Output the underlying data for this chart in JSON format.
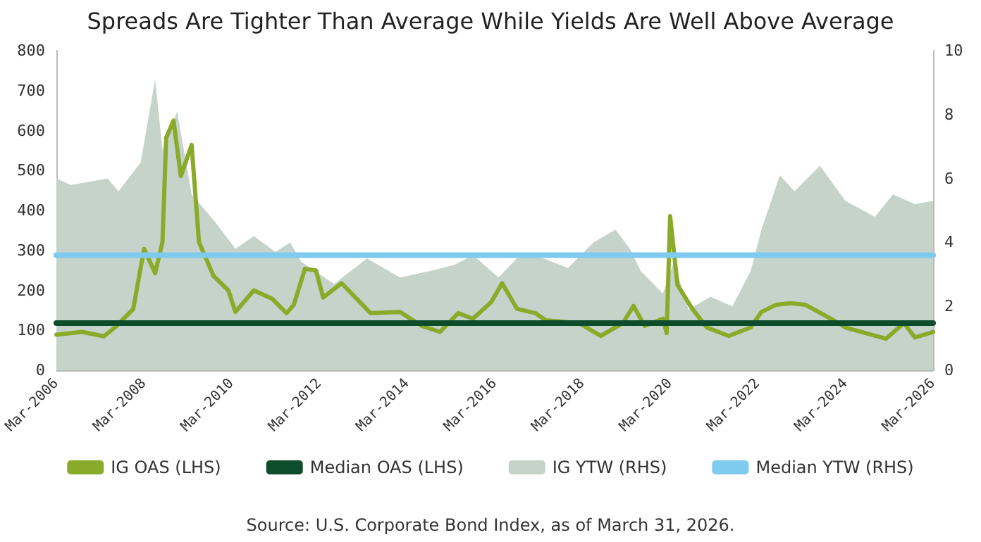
{
  "chart_data": {
    "type": "line",
    "title": "Spreads Are Tighter Than Average While Yields Are Well Above Average",
    "xlim": [
      "2006-03",
      "2026-03"
    ],
    "xticks": [
      {
        "value": "2006-03",
        "label": "Mar-2006"
      },
      {
        "value": "2008-03",
        "label": "Mar-2008"
      },
      {
        "value": "2010-03",
        "label": "Mar-2010"
      },
      {
        "value": "2012-03",
        "label": "Mar-2012"
      },
      {
        "value": "2014-03",
        "label": "Mar-2014"
      },
      {
        "value": "2016-03",
        "label": "Mar-2016"
      },
      {
        "value": "2018-03",
        "label": "Mar-2018"
      },
      {
        "value": "2020-03",
        "label": "Mar-2020"
      },
      {
        "value": "2022-03",
        "label": "Mar-2022"
      },
      {
        "value": "2024-03",
        "label": "Mar-2024"
      },
      {
        "value": "2026-03",
        "label": "Mar-2026"
      }
    ],
    "ylim": [
      0,
      800
    ],
    "yticks": [
      0,
      100,
      200,
      300,
      400,
      500,
      600,
      700,
      800
    ],
    "y2lim": [
      0,
      10
    ],
    "y2ticks": [
      0,
      2,
      4,
      6,
      8,
      10
    ],
    "series": [
      {
        "name": "IG YTW (RHS)",
        "type": "area",
        "axis": "y2",
        "color": "#c5d3cb",
        "x": [
          "2006-03",
          "2006-07",
          "2007-05",
          "2007-08",
          "2008-02",
          "2008-06",
          "2008-08",
          "2008-12",
          "2009-04",
          "2009-10",
          "2010-04",
          "2010-09",
          "2011-03",
          "2011-07",
          "2011-10",
          "2012-07",
          "2013-04",
          "2014-01",
          "2014-09",
          "2015-04",
          "2015-09",
          "2016-04",
          "2016-09",
          "2017-02",
          "2017-11",
          "2018-06",
          "2018-12",
          "2019-04",
          "2019-07",
          "2020-01",
          "2020-04",
          "2020-08",
          "2021-02",
          "2021-08",
          "2022-01",
          "2022-04",
          "2022-09",
          "2023-01",
          "2023-08",
          "2024-03",
          "2024-11",
          "2025-04",
          "2025-10",
          "2026-03"
        ],
        "values": [
          6.0,
          5.8,
          6.0,
          5.6,
          6.5,
          9.1,
          6.9,
          8.1,
          5.5,
          4.7,
          3.8,
          4.2,
          3.7,
          4.0,
          3.4,
          2.7,
          3.5,
          2.9,
          3.1,
          3.3,
          3.6,
          2.9,
          3.5,
          3.6,
          3.2,
          4.0,
          4.4,
          3.8,
          3.1,
          2.4,
          3.4,
          1.9,
          2.3,
          2.0,
          3.1,
          4.4,
          6.1,
          5.6,
          6.4,
          5.3,
          4.8,
          5.5,
          5.2,
          5.3
        ]
      },
      {
        "name": "IG OAS (LHS)",
        "type": "line",
        "color": "#8aaa2a",
        "x": [
          "2006-03",
          "2006-10",
          "2007-04",
          "2007-07",
          "2007-12",
          "2008-03",
          "2008-06",
          "2008-08",
          "2008-09",
          "2008-11",
          "2009-01",
          "2009-04",
          "2009-06",
          "2009-10",
          "2010-02",
          "2010-04",
          "2010-09",
          "2011-02",
          "2011-06",
          "2011-08",
          "2011-11",
          "2012-02",
          "2012-04",
          "2012-09",
          "2013-05",
          "2014-01",
          "2014-07",
          "2014-12",
          "2015-05",
          "2015-09",
          "2016-02",
          "2016-05",
          "2016-09",
          "2017-02",
          "2017-05",
          "2018-02",
          "2018-08",
          "2019-02",
          "2019-05",
          "2019-08",
          "2020-01",
          "2020-02",
          "2020-03",
          "2020-05",
          "2020-09",
          "2021-01",
          "2021-07",
          "2022-01",
          "2022-04",
          "2022-08",
          "2022-12",
          "2023-04",
          "2023-11",
          "2024-03",
          "2025-02",
          "2025-07",
          "2025-10",
          "2026-03"
        ],
        "values": [
          89,
          96,
          85,
          107,
          153,
          304,
          243,
          321,
          582,
          625,
          486,
          564,
          321,
          236,
          200,
          146,
          200,
          179,
          143,
          164,
          254,
          250,
          182,
          218,
          143,
          146,
          111,
          96,
          143,
          129,
          171,
          218,
          154,
          143,
          125,
          118,
          86,
          118,
          161,
          111,
          129,
          93,
          386,
          214,
          154,
          107,
          86,
          107,
          146,
          164,
          168,
          164,
          129,
          107,
          79,
          118,
          82,
          96
        ]
      },
      {
        "name": "Median OAS (LHS)",
        "color": "#0e4d2c",
        "x": [
          "2006-03",
          "2026-03"
        ],
        "values": [
          118,
          118
        ]
      },
      {
        "name": "Median YTW (RHS)",
        "axis": "y2",
        "color": "#7fcbef",
        "x": [
          "2006-03",
          "2026-03"
        ],
        "values": [
          3.6,
          3.6
        ]
      }
    ],
    "legend": "bottom",
    "grid": false,
    "marker": "none",
    "line_style": "solid",
    "annotations": [
      "Source: U.S. Corporate Bond Index, as of March 31, 2026."
    ]
  }
}
